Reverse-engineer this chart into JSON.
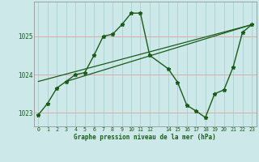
{
  "title": "Graphe pression niveau de la mer (hPa)",
  "bg_color": "#cce8e8",
  "grid_v_color": "#aad0d0",
  "grid_h_color": "#ddaaaa",
  "line_color": "#1a5c1a",
  "xlim": [
    -0.5,
    23.5
  ],
  "ylim": [
    1022.65,
    1025.9
  ],
  "yticks": [
    1023,
    1024,
    1025
  ],
  "xtick_labels": [
    "0",
    "1",
    "2",
    "3",
    "4",
    "5",
    "6",
    "7",
    "8",
    "9",
    "10",
    "11",
    "12",
    "",
    "14",
    "15",
    "16",
    "17",
    "18",
    "19",
    "20",
    "21",
    "22",
    "23"
  ],
  "series_main": [
    [
      0,
      1022.95
    ],
    [
      1,
      1023.25
    ],
    [
      2,
      1023.65
    ],
    [
      3,
      1023.82
    ],
    [
      4,
      1024.0
    ],
    [
      5,
      1024.05
    ],
    [
      6,
      1024.5
    ],
    [
      7,
      1025.0
    ],
    [
      8,
      1025.05
    ],
    [
      9,
      1025.3
    ],
    [
      10,
      1025.6
    ],
    [
      11,
      1025.6
    ],
    [
      12,
      1024.5
    ],
    [
      14,
      1024.15
    ],
    [
      15,
      1023.8
    ],
    [
      16,
      1023.2
    ],
    [
      17,
      1023.05
    ],
    [
      18,
      1022.88
    ],
    [
      19,
      1023.5
    ],
    [
      20,
      1023.6
    ],
    [
      21,
      1024.2
    ],
    [
      22,
      1025.1
    ],
    [
      23,
      1025.3
    ]
  ],
  "series_line2": [
    [
      0,
      1023.82
    ],
    [
      23,
      1025.3
    ]
  ],
  "series_line3": [
    [
      3,
      1023.82
    ],
    [
      23,
      1025.3
    ]
  ]
}
